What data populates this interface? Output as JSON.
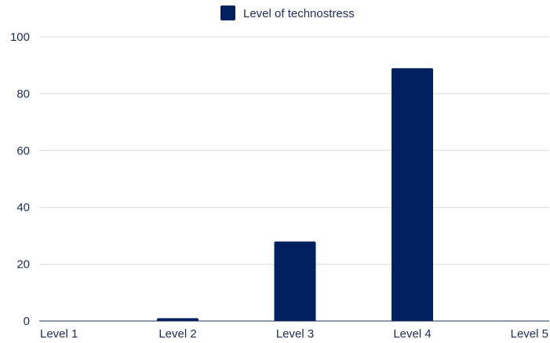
{
  "chart_data": {
    "type": "bar",
    "categories": [
      "Level 1",
      "Level 2",
      "Level 3",
      "Level 4",
      "Level 5"
    ],
    "series": [
      {
        "name": "Level of technostress",
        "values": [
          0,
          1,
          28,
          89,
          0
        ],
        "color": "#002060"
      }
    ],
    "ylim": [
      0,
      100
    ],
    "yticks": [
      0,
      20,
      40,
      60,
      80,
      100
    ],
    "grid": true,
    "legend_position": "top-center",
    "colors": {
      "bar": "#002060",
      "grid": "#d9d9d9",
      "axis": "#1f2d52",
      "text": "#1f2d52"
    }
  }
}
